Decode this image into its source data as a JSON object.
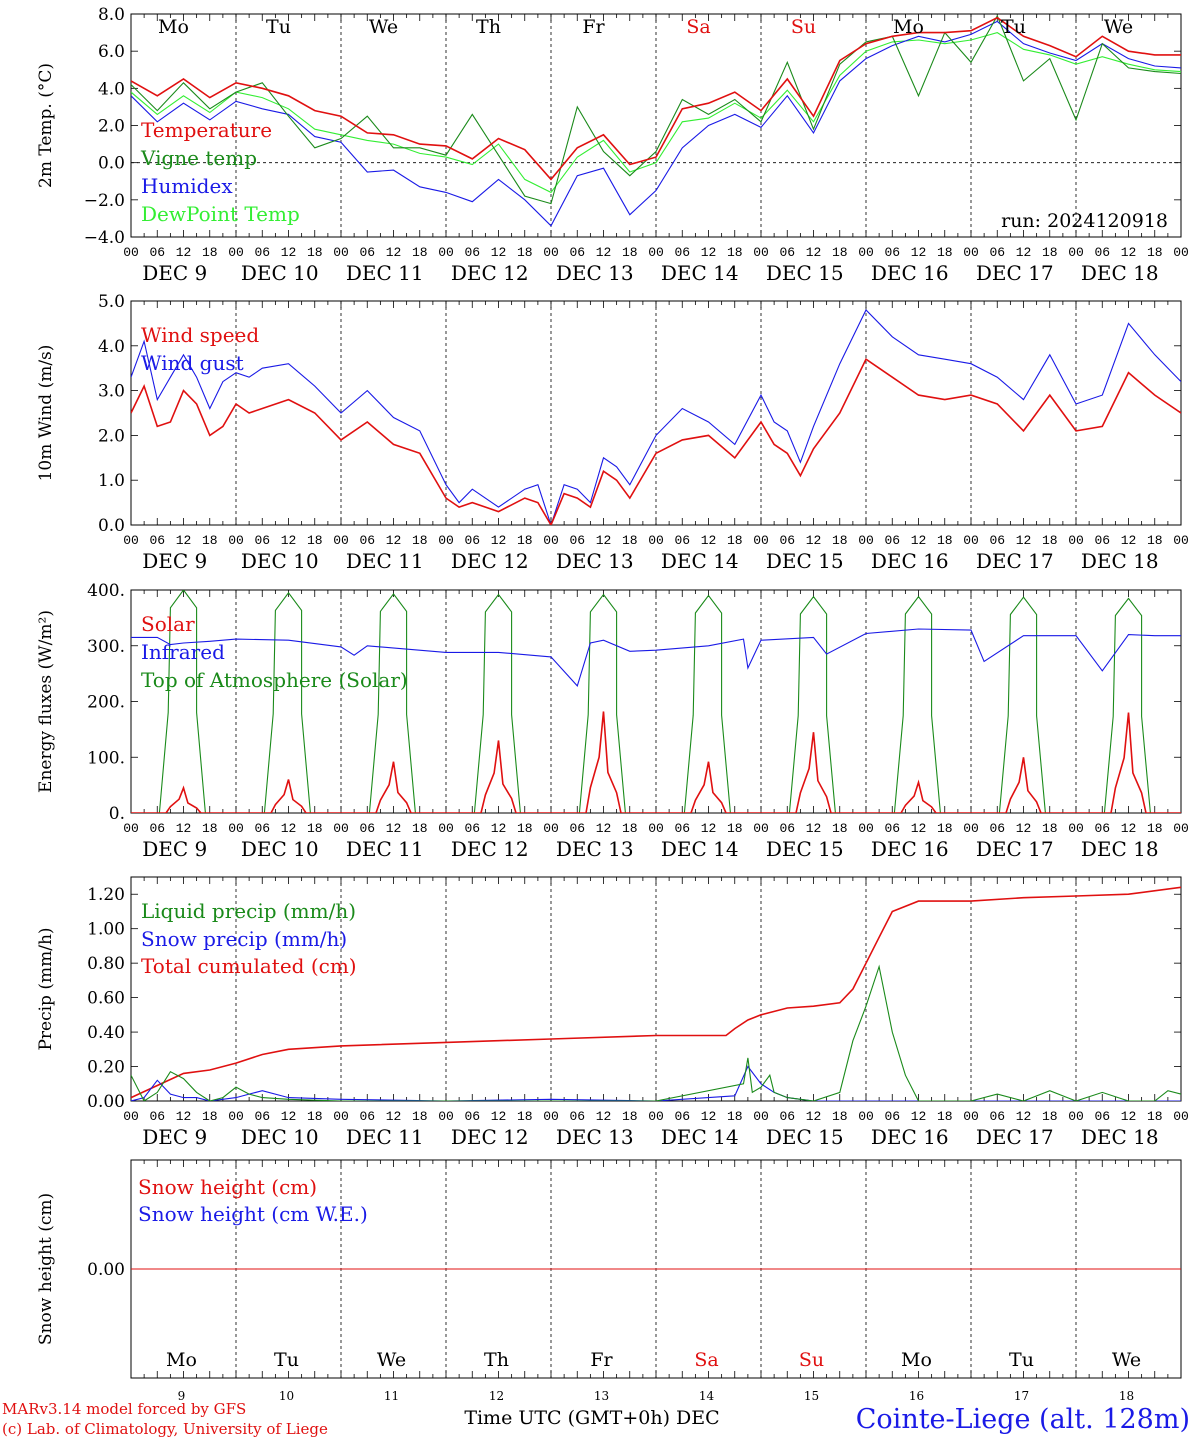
{
  "colors": {
    "red": "#e01010",
    "green": "#1a8a1a",
    "blue": "#1a1ae6",
    "lightgreen": "#33ee33",
    "black": "#000000"
  },
  "day_labels": [
    "Mo",
    "Tu",
    "We",
    "Th",
    "Fr",
    "Sa",
    "Su",
    "Mo",
    "Tu",
    "We"
  ],
  "weekend_days": [
    "Sa",
    "Su"
  ],
  "date_labels": [
    "DEC  9",
    "DEC 10",
    "DEC 11",
    "DEC 12",
    "DEC 13",
    "DEC 14",
    "DEC 15",
    "DEC 16",
    "DEC 17",
    "DEC 18"
  ],
  "hour_ticks": [
    "00",
    "06",
    "12",
    "18"
  ],
  "bottom_day_numbers": [
    "9",
    "10",
    "11",
    "12",
    "13",
    "14",
    "15",
    "16",
    "17",
    "18"
  ],
  "footer": {
    "model_line": "MARv3.14 model forced by GFS",
    "copyright_line": "(c) Lab. of Climatology, University of Liege",
    "time_axis_label": "Time UTC (GMT+0h) DEC",
    "station": "Cointe-Liege (alt. 128m)"
  },
  "chart_data": [
    {
      "type": "line",
      "ylabel": "2m Temp. (°C)",
      "yticks": [
        "8.0",
        "6.0",
        "4.0",
        "2.0",
        "0.0",
        "−2.0",
        "−4.0"
      ],
      "ylim": [
        -4,
        8
      ],
      "zero_line": true,
      "run_label": "run: 2024120918",
      "x_unit": "hours since DEC 9 00 UTC",
      "series": [
        {
          "name": "Temperature",
          "color": "red",
          "x": [
            0,
            6,
            12,
            18,
            24,
            30,
            36,
            42,
            48,
            54,
            60,
            66,
            72,
            78,
            84,
            90,
            96,
            102,
            108,
            114,
            120,
            126,
            132,
            138,
            144,
            150,
            156,
            162,
            168,
            174,
            180,
            186,
            192,
            198,
            204,
            210,
            216,
            222,
            228,
            234,
            240
          ],
          "values": [
            4.4,
            3.6,
            4.5,
            3.5,
            4.3,
            4.0,
            3.6,
            2.8,
            2.5,
            1.6,
            1.5,
            1.0,
            0.9,
            0.2,
            1.3,
            0.7,
            -0.9,
            0.8,
            1.5,
            -0.1,
            0.3,
            2.9,
            3.2,
            3.8,
            2.8,
            4.5,
            2.5,
            5.5,
            6.4,
            6.8,
            7.0,
            7.0,
            7.1,
            7.8,
            6.8,
            6.3,
            5.7,
            6.8,
            6.0,
            5.8,
            5.8
          ]
        },
        {
          "name": "Vigne temp",
          "color": "green",
          "x": [
            0,
            6,
            12,
            18,
            24,
            30,
            36,
            42,
            48,
            54,
            60,
            66,
            72,
            78,
            84,
            90,
            96,
            102,
            108,
            114,
            120,
            126,
            132,
            138,
            144,
            150,
            156,
            162,
            168,
            174,
            180,
            186,
            192,
            198,
            204,
            210,
            216,
            222,
            228,
            234,
            240
          ],
          "values": [
            4.2,
            2.8,
            4.3,
            2.9,
            3.8,
            4.3,
            2.5,
            0.8,
            1.3,
            2.5,
            0.8,
            0.8,
            0.4,
            2.6,
            0.4,
            -1.8,
            -2.2,
            3.0,
            0.6,
            -0.7,
            0.6,
            3.4,
            2.6,
            3.4,
            2.2,
            5.4,
            1.8,
            5.3,
            6.5,
            6.8,
            3.6,
            7.0,
            5.4,
            7.9,
            4.4,
            5.6,
            2.3,
            6.4,
            5.1,
            4.9,
            4.8
          ]
        },
        {
          "name": "Humidex",
          "color": "blue",
          "x": [
            0,
            6,
            12,
            18,
            24,
            30,
            36,
            42,
            48,
            54,
            60,
            66,
            72,
            78,
            84,
            90,
            96,
            102,
            108,
            114,
            120,
            126,
            132,
            138,
            144,
            150,
            156,
            162,
            168,
            174,
            180,
            186,
            192,
            198,
            204,
            210,
            216,
            222,
            228,
            234,
            240
          ],
          "values": [
            3.6,
            2.2,
            3.2,
            2.3,
            3.3,
            2.9,
            2.6,
            1.4,
            1.1,
            -0.5,
            -0.4,
            -1.3,
            -1.6,
            -2.1,
            -0.9,
            -2.0,
            -3.4,
            -0.7,
            -0.3,
            -2.8,
            -1.5,
            0.8,
            2.0,
            2.6,
            1.9,
            3.6,
            1.6,
            4.4,
            5.6,
            6.3,
            6.8,
            6.5,
            6.9,
            7.6,
            6.4,
            5.9,
            5.5,
            6.4,
            5.6,
            5.2,
            5.1
          ]
        },
        {
          "name": "DewPoint Temp",
          "color": "lightgreen",
          "x": [
            0,
            6,
            12,
            18,
            24,
            30,
            36,
            42,
            48,
            54,
            60,
            66,
            72,
            78,
            84,
            90,
            96,
            102,
            108,
            114,
            120,
            126,
            132,
            138,
            144,
            150,
            156,
            162,
            168,
            174,
            180,
            186,
            192,
            198,
            204,
            210,
            216,
            222,
            228,
            234,
            240
          ],
          "values": [
            3.8,
            2.6,
            3.6,
            2.7,
            3.8,
            3.5,
            2.9,
            1.8,
            1.5,
            1.2,
            1.0,
            0.5,
            0.3,
            -0.1,
            1.0,
            -0.9,
            -1.6,
            0.3,
            1.2,
            -0.5,
            0.0,
            2.2,
            2.4,
            3.2,
            2.4,
            3.9,
            2.2,
            4.7,
            6.0,
            6.5,
            6.6,
            6.4,
            6.6,
            7.0,
            6.1,
            5.8,
            5.3,
            5.7,
            5.3,
            5.0,
            4.9
          ]
        }
      ]
    },
    {
      "type": "line",
      "ylabel": "10m Wind (m/s)",
      "yticks": [
        "5.0",
        "4.0",
        "3.0",
        "2.0",
        "1.0",
        "0.0"
      ],
      "ylim": [
        0,
        5
      ],
      "x_unit": "hours since DEC 9 00 UTC",
      "series": [
        {
          "name": "Wind speed",
          "color": "red",
          "x": [
            0,
            3,
            6,
            9,
            12,
            15,
            18,
            21,
            24,
            27,
            30,
            36,
            42,
            48,
            54,
            60,
            66,
            72,
            75,
            78,
            84,
            90,
            93,
            96,
            99,
            102,
            105,
            108,
            111,
            114,
            120,
            126,
            132,
            138,
            144,
            147,
            150,
            153,
            156,
            162,
            168,
            174,
            180,
            186,
            192,
            198,
            204,
            210,
            216,
            222,
            228,
            234,
            240
          ],
          "values": [
            2.5,
            3.1,
            2.2,
            2.3,
            3.0,
            2.7,
            2.0,
            2.2,
            2.7,
            2.5,
            2.6,
            2.8,
            2.5,
            1.9,
            2.3,
            1.8,
            1.6,
            0.6,
            0.4,
            0.5,
            0.3,
            0.6,
            0.5,
            0.0,
            0.7,
            0.6,
            0.4,
            1.2,
            1.0,
            0.6,
            1.6,
            1.9,
            2.0,
            1.5,
            2.3,
            1.8,
            1.6,
            1.1,
            1.7,
            2.5,
            3.7,
            3.3,
            2.9,
            2.8,
            2.9,
            2.7,
            2.1,
            2.9,
            2.1,
            2.2,
            3.4,
            2.9,
            2.5
          ]
        },
        {
          "name": "Wind gust",
          "color": "blue",
          "x": [
            0,
            3,
            6,
            9,
            12,
            15,
            18,
            21,
            24,
            27,
            30,
            36,
            42,
            48,
            54,
            60,
            66,
            72,
            75,
            78,
            84,
            90,
            93,
            96,
            99,
            102,
            105,
            108,
            111,
            114,
            120,
            126,
            132,
            138,
            144,
            147,
            150,
            153,
            156,
            162,
            168,
            174,
            180,
            186,
            192,
            198,
            204,
            210,
            216,
            222,
            228,
            234,
            240
          ],
          "values": [
            3.3,
            4.1,
            2.8,
            3.3,
            3.8,
            3.3,
            2.6,
            3.2,
            3.4,
            3.3,
            3.5,
            3.6,
            3.1,
            2.5,
            3.0,
            2.4,
            2.1,
            0.9,
            0.5,
            0.8,
            0.4,
            0.8,
            0.9,
            0.0,
            0.9,
            0.8,
            0.5,
            1.5,
            1.3,
            0.9,
            2.0,
            2.6,
            2.3,
            1.8,
            2.9,
            2.3,
            2.1,
            1.4,
            2.2,
            3.6,
            4.8,
            4.2,
            3.8,
            3.7,
            3.6,
            3.3,
            2.8,
            3.8,
            2.7,
            2.9,
            4.5,
            3.8,
            3.2
          ]
        }
      ]
    },
    {
      "type": "line",
      "ylabel": "Energy fluxes (W/m²)",
      "yticks": [
        "400.",
        "300.",
        "200.",
        "100.",
        "0."
      ],
      "ylim": [
        0,
        400
      ],
      "x_unit": "hours since DEC 9 00 UTC",
      "series": [
        {
          "name": "Solar",
          "color": "red",
          "x_note": "daily pulse centred near 12 UTC",
          "peaks": [
            45,
            60,
            92,
            130,
            182,
            92,
            145,
            55,
            100,
            180
          ]
        },
        {
          "name": "Infrared",
          "color": "blue",
          "x": [
            0,
            6,
            9,
            12,
            18,
            24,
            36,
            48,
            51,
            54,
            72,
            84,
            96,
            102,
            105,
            108,
            114,
            120,
            132,
            140,
            141,
            144,
            156,
            159,
            168,
            180,
            192,
            195,
            204,
            216,
            222,
            228,
            234,
            240
          ],
          "values": [
            315,
            315,
            302,
            305,
            308,
            312,
            310,
            298,
            283,
            300,
            288,
            288,
            280,
            228,
            305,
            310,
            290,
            292,
            300,
            312,
            260,
            310,
            315,
            285,
            322,
            330,
            328,
            272,
            318,
            318,
            255,
            320,
            318,
            318
          ]
        },
        {
          "name": "Top of Atmosphere (Solar)",
          "color": "green",
          "x_note": "daily pulse from ~07 to ~16 UTC",
          "peaks": [
            400,
            395,
            393,
            392,
            392,
            390,
            388,
            388,
            387,
            385
          ]
        }
      ]
    },
    {
      "type": "line",
      "ylabel": "Precip (mm/h)",
      "yticks": [
        "1.20",
        "1.00",
        "0.80",
        "0.60",
        "0.40",
        "0.20",
        "0.00"
      ],
      "ylim": [
        0,
        1.3
      ],
      "x_unit": "hours since DEC 9 00 UTC",
      "series": [
        {
          "name": "Liquid precip (mm/h)",
          "color": "green",
          "x": [
            0,
            3,
            6,
            9,
            12,
            15,
            18,
            21,
            24,
            27,
            30,
            36,
            48,
            72,
            96,
            120,
            140,
            141,
            142,
            144,
            146,
            147,
            150,
            156,
            162,
            165,
            168,
            171,
            174,
            177,
            180,
            186,
            192,
            198,
            204,
            210,
            216,
            222,
            228,
            234,
            237,
            240
          ],
          "values": [
            0.15,
            0.0,
            0.05,
            0.17,
            0.13,
            0.05,
            0.0,
            0.02,
            0.08,
            0.04,
            0.02,
            0.01,
            0.0,
            0.0,
            0.0,
            0.0,
            0.1,
            0.25,
            0.05,
            0.08,
            0.15,
            0.05,
            0.02,
            0.0,
            0.05,
            0.35,
            0.55,
            0.78,
            0.4,
            0.15,
            0.0,
            0.0,
            0.0,
            0.04,
            0.0,
            0.06,
            0.0,
            0.05,
            0.0,
            0.0,
            0.06,
            0.04
          ]
        },
        {
          "name": "Snow precip (mm/h)",
          "color": "blue",
          "x": [
            0,
            3,
            6,
            9,
            12,
            15,
            18,
            24,
            30,
            36,
            48,
            72,
            96,
            120,
            138,
            141,
            144,
            147,
            150,
            156,
            240
          ],
          "values": [
            0.0,
            0.02,
            0.12,
            0.04,
            0.02,
            0.02,
            0.0,
            0.02,
            0.06,
            0.02,
            0.01,
            0.0,
            0.01,
            0.0,
            0.03,
            0.2,
            0.1,
            0.05,
            0.02,
            0.0,
            0.0
          ]
        },
        {
          "name": "Total cumulated (cm)",
          "color": "red",
          "x": [
            0,
            6,
            12,
            18,
            24,
            30,
            36,
            48,
            72,
            96,
            120,
            136,
            138,
            141,
            144,
            150,
            156,
            162,
            165,
            168,
            171,
            174,
            180,
            192,
            204,
            216,
            228,
            240
          ],
          "values": [
            0.02,
            0.09,
            0.16,
            0.18,
            0.22,
            0.27,
            0.3,
            0.32,
            0.34,
            0.36,
            0.38,
            0.38,
            0.42,
            0.47,
            0.5,
            0.54,
            0.55,
            0.57,
            0.65,
            0.8,
            0.95,
            1.1,
            1.16,
            1.16,
            1.18,
            1.19,
            1.2,
            1.24
          ]
        }
      ]
    },
    {
      "type": "line",
      "ylabel": "Snow height (cm)",
      "yticks": [
        "0.00"
      ],
      "ylim": [
        -1,
        1
      ],
      "x_unit": "hours since DEC 9 00 UTC",
      "series": [
        {
          "name": "Snow height (cm)",
          "color": "red",
          "x": [
            0,
            240
          ],
          "values": [
            0,
            0
          ]
        },
        {
          "name": "Snow height (cm W.E.)",
          "color": "blue",
          "x": [
            0,
            240
          ],
          "values": [
            0,
            0
          ]
        }
      ]
    }
  ]
}
